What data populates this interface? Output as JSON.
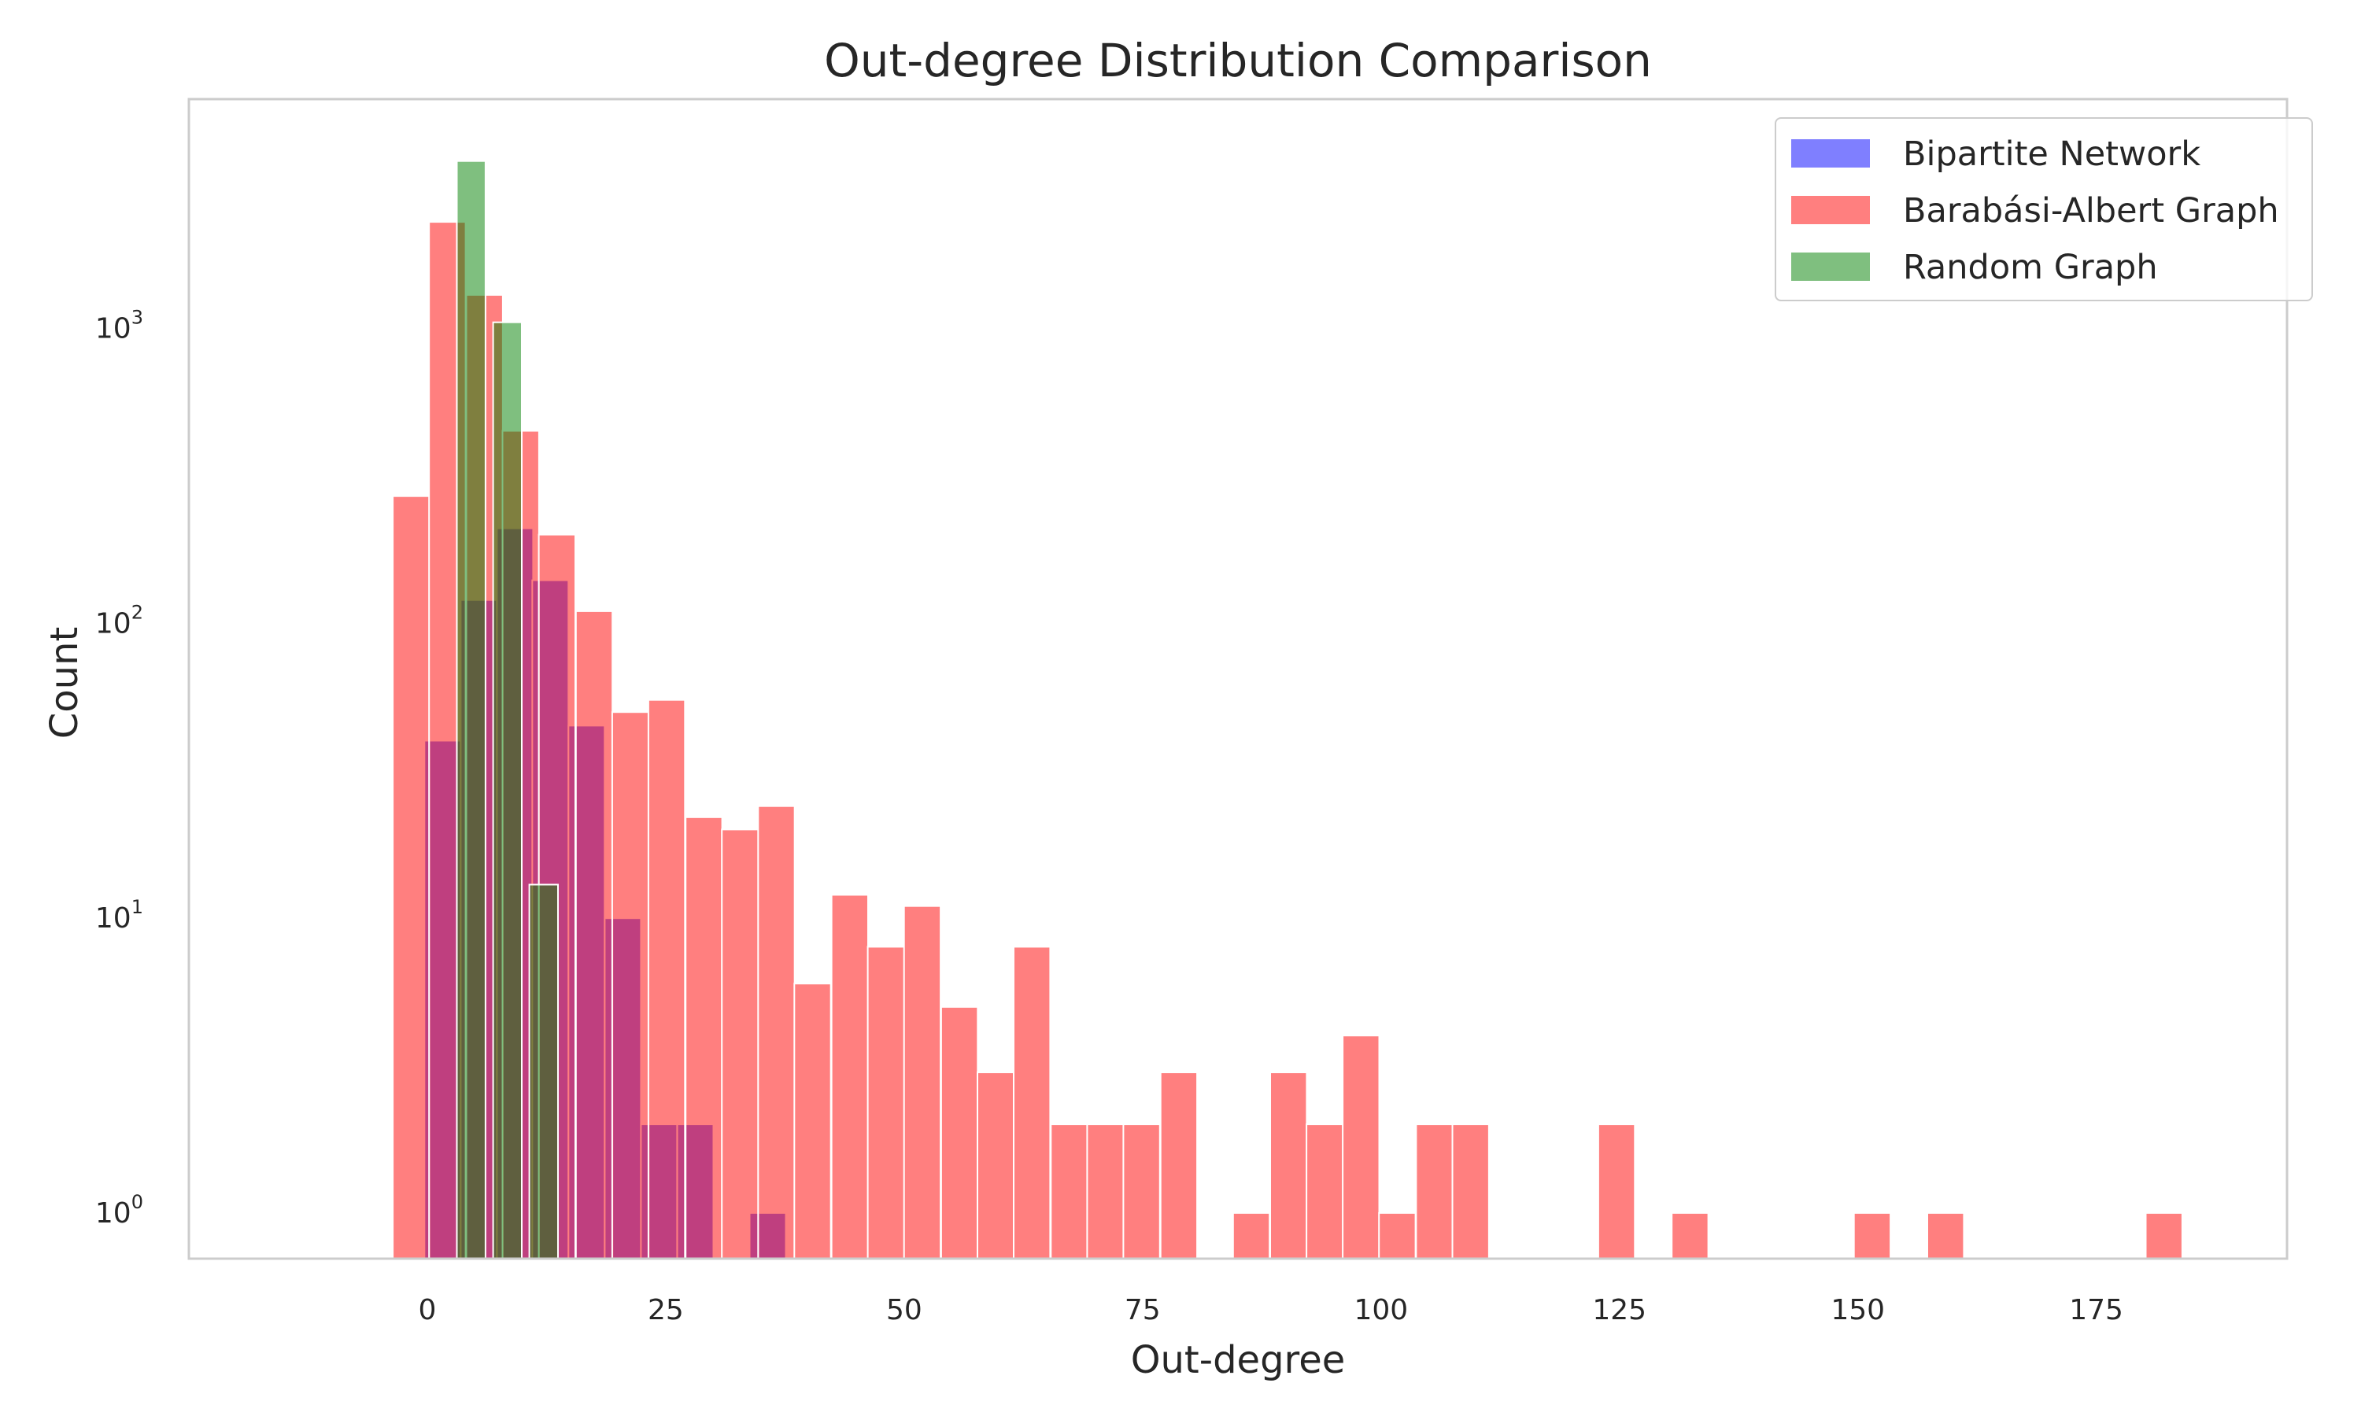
{
  "chart_data": {
    "type": "bar",
    "title": "Out-degree Distribution Comparison",
    "xlabel": "Out-degree",
    "ylabel": "Count",
    "yscale": "log",
    "xlim": [
      -25,
      195
    ],
    "ylim": [
      0.7,
      6000
    ],
    "x_ticks": [
      0,
      25,
      50,
      75,
      100,
      125,
      150,
      175
    ],
    "x_tick_labels": [
      "0",
      "25",
      "50",
      "75",
      "100",
      "125",
      "150",
      "175"
    ],
    "y_ticks": [
      1,
      10,
      100,
      1000
    ],
    "y_tick_labels": [
      {
        "base": "10",
        "exp": "0"
      },
      {
        "base": "10",
        "exp": "1"
      },
      {
        "base": "10",
        "exp": "2"
      },
      {
        "base": "10",
        "exp": "3"
      }
    ],
    "legend": {
      "position": "top-right"
    },
    "series": [
      {
        "name": "Bipartite Network",
        "color": "#0000ff",
        "opacity": 0.5,
        "bin_width": 3.8,
        "bars": [
          {
            "x": 1.6,
            "count": 40
          },
          {
            "x": 5.4,
            "count": 120
          },
          {
            "x": 9.2,
            "count": 210
          },
          {
            "x": 12.9,
            "count": 140
          },
          {
            "x": 16.7,
            "count": 45
          },
          {
            "x": 20.5,
            "count": 10
          },
          {
            "x": 24.3,
            "count": 2
          },
          {
            "x": 28.1,
            "count": 2
          },
          {
            "x": 35.7,
            "count": 1
          }
        ]
      },
      {
        "name": "Barabási-Albert Graph",
        "color": "#ff0000",
        "opacity": 0.5,
        "bin_width": 3.83,
        "bars": [
          {
            "x": -1.7,
            "count": 270
          },
          {
            "x": 2.1,
            "count": 2300
          },
          {
            "x": 6.0,
            "count": 1300
          },
          {
            "x": 9.8,
            "count": 450
          },
          {
            "x": 13.6,
            "count": 200
          },
          {
            "x": 17.5,
            "count": 110
          },
          {
            "x": 21.3,
            "count": 50
          },
          {
            "x": 25.1,
            "count": 55
          },
          {
            "x": 29.0,
            "count": 22
          },
          {
            "x": 32.8,
            "count": 20
          },
          {
            "x": 36.6,
            "count": 24
          },
          {
            "x": 40.4,
            "count": 6
          },
          {
            "x": 44.3,
            "count": 12
          },
          {
            "x": 48.1,
            "count": 8
          },
          {
            "x": 51.9,
            "count": 11
          },
          {
            "x": 55.8,
            "count": 5
          },
          {
            "x": 59.6,
            "count": 3
          },
          {
            "x": 63.4,
            "count": 8
          },
          {
            "x": 67.3,
            "count": 2
          },
          {
            "x": 71.1,
            "count": 2
          },
          {
            "x": 74.9,
            "count": 2
          },
          {
            "x": 78.8,
            "count": 3
          },
          {
            "x": 86.4,
            "count": 1
          },
          {
            "x": 90.3,
            "count": 3
          },
          {
            "x": 94.1,
            "count": 2
          },
          {
            "x": 97.9,
            "count": 4
          },
          {
            "x": 101.7,
            "count": 1
          },
          {
            "x": 105.6,
            "count": 2
          },
          {
            "x": 109.4,
            "count": 2
          },
          {
            "x": 124.7,
            "count": 2
          },
          {
            "x": 132.4,
            "count": 1
          },
          {
            "x": 151.5,
            "count": 1
          },
          {
            "x": 159.2,
            "count": 1
          },
          {
            "x": 182.1,
            "count": 1
          }
        ]
      },
      {
        "name": "Random Graph",
        "color": "#008000",
        "opacity": 0.5,
        "bin_width": 3.0,
        "bars": [
          {
            "x": 4.6,
            "count": 3700
          },
          {
            "x": 8.4,
            "count": 1050
          },
          {
            "x": 12.2,
            "count": 13
          }
        ]
      }
    ]
  }
}
